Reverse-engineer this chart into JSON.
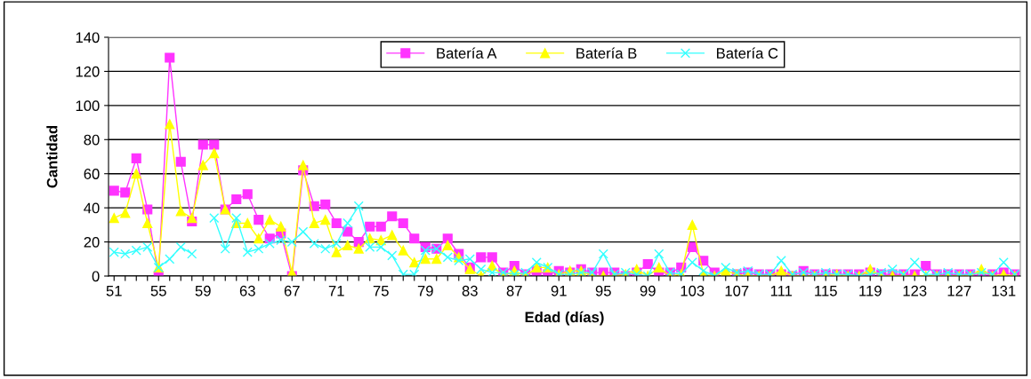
{
  "chart_data": {
    "type": "line",
    "xlabel": "Edad (días)",
    "ylabel": "Cantidad",
    "categories": [
      "51",
      null,
      null,
      null,
      "55",
      null,
      null,
      null,
      "59",
      null,
      null,
      null,
      "63",
      null,
      null,
      null,
      "67",
      null,
      null,
      null,
      "71",
      null,
      null,
      null,
      "75",
      null,
      null,
      null,
      "79",
      null,
      null,
      null,
      "83",
      null,
      null,
      null,
      "87",
      null,
      null,
      null,
      "91",
      null,
      null,
      null,
      "95",
      null,
      null,
      null,
      "99",
      null,
      null,
      null,
      "103",
      null,
      null,
      null,
      "107",
      null,
      null,
      null,
      "111",
      null,
      null,
      null,
      "115",
      null,
      null,
      null,
      "119",
      null,
      null,
      null,
      "123",
      null,
      null,
      null,
      "127",
      null,
      null,
      null,
      "131",
      null
    ],
    "series": [
      {
        "name": "Batería A",
        "color": "#ff33ff",
        "marker": "square",
        "values": [
          50,
          49,
          69,
          39,
          0,
          128,
          67,
          32,
          77,
          77,
          39,
          45,
          48,
          33,
          22,
          25,
          0,
          62,
          41,
          42,
          31,
          26,
          20,
          29,
          29,
          35,
          31,
          22,
          17,
          16,
          22,
          13,
          5,
          11,
          11,
          2,
          6,
          1,
          3,
          1,
          3,
          2,
          4,
          2,
          2,
          2,
          0,
          2,
          7,
          2,
          2,
          5,
          17,
          9,
          2,
          null,
          1,
          2,
          1,
          1,
          1,
          0,
          3,
          1,
          1,
          1,
          1,
          1,
          2,
          1,
          1,
          1,
          1,
          6,
          1,
          1,
          1,
          1,
          0,
          1,
          2,
          1
        ]
      },
      {
        "name": "Batería B",
        "color": "#ffff00",
        "marker": "triangle",
        "values": [
          34,
          37,
          60,
          31,
          5,
          89,
          38,
          34,
          65,
          72,
          39,
          31,
          31,
          22,
          33,
          29,
          2,
          65,
          31,
          33,
          14,
          18,
          16,
          22,
          21,
          24,
          15,
          8,
          10,
          10,
          18,
          11,
          4,
          0,
          6,
          0,
          3,
          0,
          5,
          5,
          1,
          3,
          3,
          0,
          0,
          0,
          1,
          4,
          0,
          5,
          0,
          1,
          30,
          1,
          0,
          3,
          1,
          0,
          0,
          0,
          3,
          0,
          0,
          0,
          0,
          1,
          0,
          0,
          4,
          0,
          0,
          0,
          0,
          0,
          0,
          0,
          0,
          0,
          4,
          0,
          1,
          0
        ]
      },
      {
        "name": "Batería C",
        "color": "#33ffff",
        "marker": "cross",
        "values": [
          14,
          13,
          15,
          17,
          5,
          10,
          17,
          13,
          null,
          34,
          16,
          34,
          14,
          16,
          19,
          21,
          20,
          26,
          19,
          16,
          19,
          31,
          41,
          17,
          17,
          12,
          1,
          1,
          15,
          16,
          11,
          9,
          10,
          4,
          2,
          2,
          1,
          2,
          8,
          5,
          1,
          1,
          2,
          2,
          13,
          1,
          2,
          1,
          0,
          13,
          2,
          1,
          8,
          3,
          0,
          5,
          2,
          3,
          1,
          1,
          9,
          1,
          2,
          1,
          2,
          1,
          1,
          0,
          1,
          2,
          4,
          1,
          8,
          1,
          1,
          2,
          1,
          1,
          2,
          1,
          8,
          1
        ]
      }
    ],
    "ylim": [
      0,
      140
    ],
    "yticks": [
      0,
      20,
      40,
      60,
      80,
      100,
      120,
      140
    ],
    "grid": "y",
    "legend": "top",
    "line_style": "solid"
  }
}
